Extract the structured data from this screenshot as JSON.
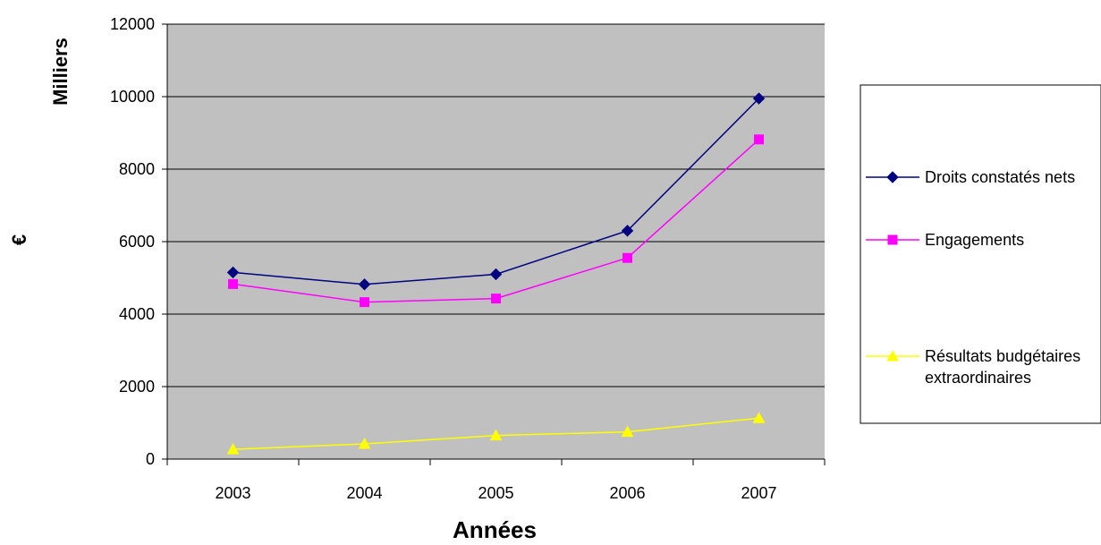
{
  "chart_data": {
    "type": "line",
    "x": [
      "2003",
      "2004",
      "2005",
      "2006",
      "2007"
    ],
    "xlabel": "Années",
    "ylabel": "Milliers",
    "yunit": "€",
    "ylim": [
      0,
      12000
    ],
    "yticks": [
      "0",
      "2000",
      "4000",
      "6000",
      "8000",
      "10000",
      "12000"
    ],
    "grid": true,
    "plot_background": "#c0c0c0",
    "legend_position": "right",
    "series": [
      {
        "name": "Droits constatés nets",
        "values": [
          5150,
          4820,
          5100,
          6300,
          9950
        ],
        "color": "#000080",
        "marker": "diamond"
      },
      {
        "name": "Engagements",
        "values": [
          4830,
          4330,
          4430,
          5550,
          8820
        ],
        "color": "#ff00ff",
        "marker": "square"
      },
      {
        "name": "Résultats budgétaires extraordinaires",
        "name_lines": [
          "Résultats budgétaires",
          "extraordinaires"
        ],
        "values": [
          270,
          420,
          650,
          750,
          1130
        ],
        "color": "#ffff00",
        "marker": "triangle"
      }
    ]
  }
}
